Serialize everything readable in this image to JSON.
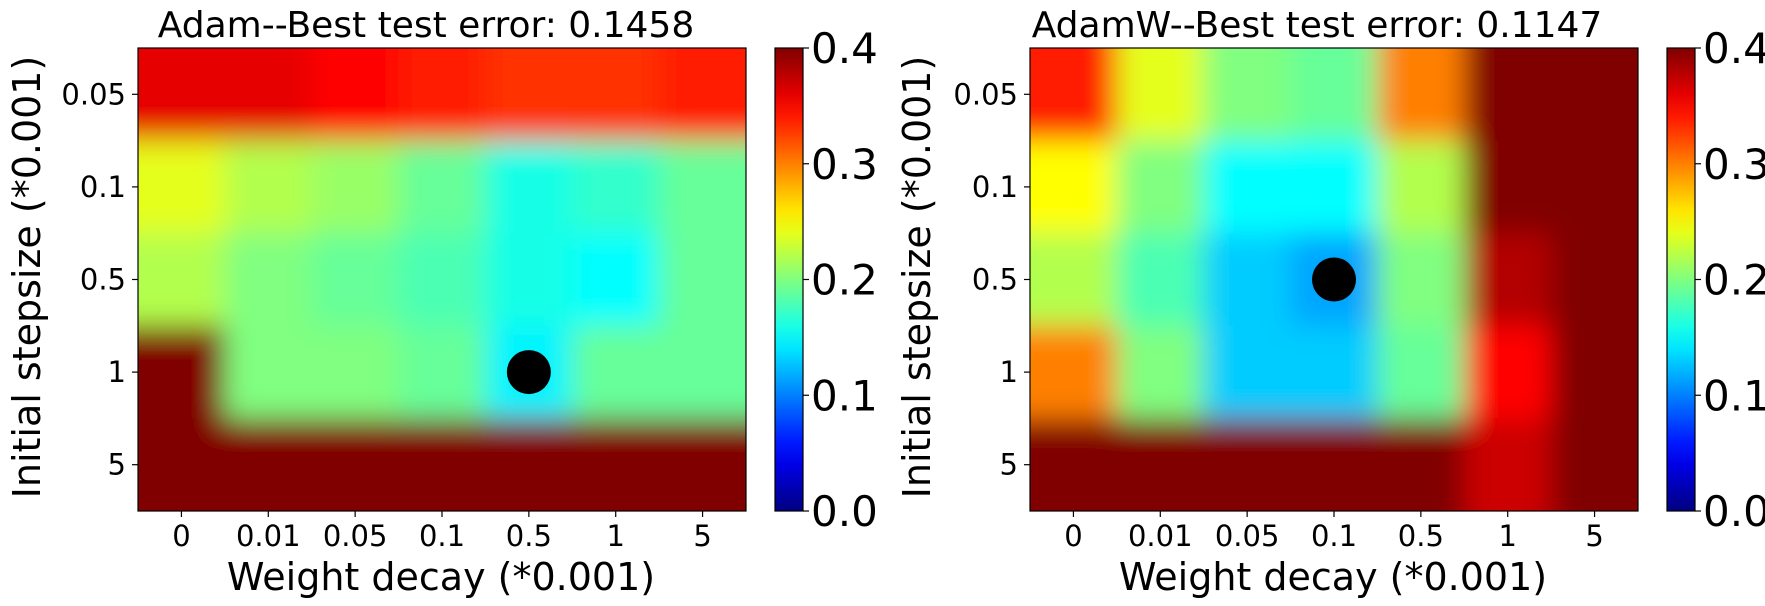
{
  "chart_data": [
    {
      "type": "heatmap",
      "title": "Adam--Best test error: 0.1458",
      "xlabel": "Weight decay (*0.001)",
      "ylabel": "Initial stepsize (*0.001)",
      "x_categories": [
        "0",
        "0.01",
        "0.05",
        "0.1",
        "0.5",
        "1",
        "5"
      ],
      "y_categories": [
        "0.05",
        "0.1",
        "0.5",
        "1",
        "5"
      ],
      "values": [
        [
          0.36,
          0.36,
          0.35,
          0.34,
          0.33,
          0.33,
          0.34
        ],
        [
          0.24,
          0.22,
          0.21,
          0.19,
          0.16,
          0.17,
          0.19
        ],
        [
          0.22,
          0.2,
          0.19,
          0.18,
          0.16,
          0.15,
          0.19
        ],
        [
          0.4,
          0.2,
          0.2,
          0.19,
          0.1458,
          0.19,
          0.19
        ],
        [
          0.4,
          0.4,
          0.4,
          0.4,
          0.4,
          0.4,
          0.4
        ]
      ],
      "best": {
        "x": "0.5",
        "y": "1",
        "value": 0.1458
      },
      "colorbar": {
        "min": 0.0,
        "max": 0.4,
        "ticks": [
          "0.0",
          "0.1",
          "0.2",
          "0.3",
          "0.4"
        ],
        "colormap": "jet"
      }
    },
    {
      "type": "heatmap",
      "title": "AdamW--Best test error: 0.1147",
      "xlabel": "Weight decay (*0.001)",
      "ylabel": "Initial stepsize (*0.001)",
      "x_categories": [
        "0",
        "0.01",
        "0.05",
        "0.1",
        "0.5",
        "1",
        "5"
      ],
      "y_categories": [
        "0.05",
        "0.1",
        "0.5",
        "1",
        "5"
      ],
      "values": [
        [
          0.34,
          0.24,
          0.2,
          0.19,
          0.3,
          0.4,
          0.4
        ],
        [
          0.25,
          0.2,
          0.15,
          0.15,
          0.22,
          0.4,
          0.4
        ],
        [
          0.22,
          0.18,
          0.13,
          0.1147,
          0.2,
          0.38,
          0.4
        ],
        [
          0.3,
          0.2,
          0.13,
          0.13,
          0.19,
          0.35,
          0.4
        ],
        [
          0.4,
          0.4,
          0.4,
          0.4,
          0.4,
          0.37,
          0.4
        ]
      ],
      "best": {
        "x": "0.1",
        "y": "0.5",
        "value": 0.1147
      },
      "colorbar": {
        "min": 0.0,
        "max": 0.4,
        "ticks": [
          "0.0",
          "0.1",
          "0.2",
          "0.3",
          "0.4"
        ],
        "colormap": "jet"
      }
    }
  ]
}
